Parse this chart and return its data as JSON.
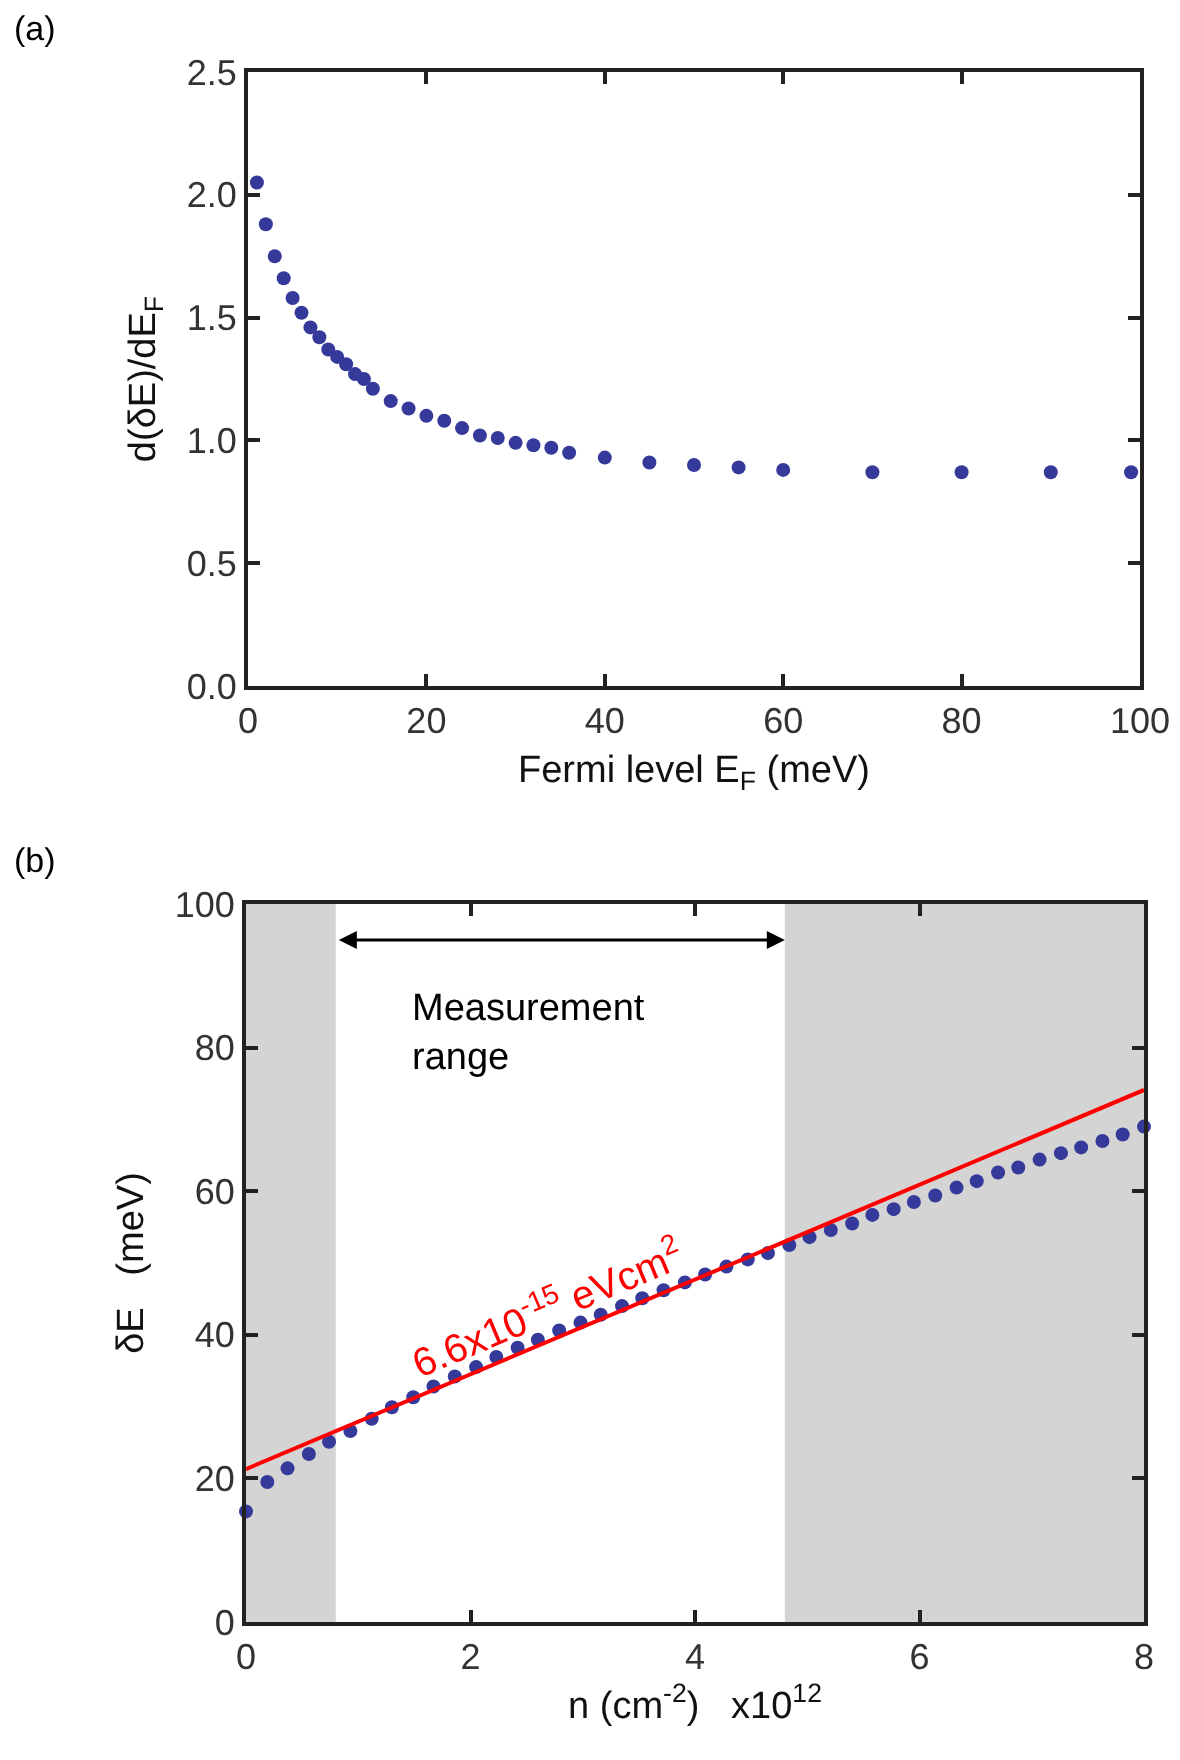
{
  "chart_data": [
    {
      "type": "scatter",
      "xlabel": "Fermi level E$_{F}$ (meV)",
      "ylabel": "d(δE)/dE$_{F}$",
      "marker": "circle",
      "annotations": [
        "(a)"
      ],
      "xlim": [
        0,
        100
      ],
      "xticks": [
        0,
        20,
        40,
        60,
        80,
        100
      ],
      "ylim": [
        0,
        2.5
      ],
      "yticks": [
        {
          "value": 0,
          "label": "0.0"
        },
        {
          "value": 0.5,
          "label": "0.5"
        },
        {
          "value": 1,
          "label": "1.0"
        },
        {
          "value": 1.5,
          "label": "1.5"
        },
        {
          "value": 2,
          "label": "2.0"
        },
        {
          "value": 2.5,
          "label": "2.5"
        }
      ],
      "series": [
        {
          "color": "#35399a",
          "x": [
            1,
            2,
            3,
            4,
            5,
            6,
            7,
            8,
            9,
            10,
            11,
            12,
            13,
            14,
            16,
            18,
            20,
            22,
            24,
            26,
            28,
            30,
            32,
            34,
            36,
            40,
            45,
            50,
            55,
            60,
            70,
            80,
            90,
            99
          ],
          "values": [
            2.05,
            1.88,
            1.75,
            1.66,
            1.58,
            1.52,
            1.46,
            1.42,
            1.37,
            1.34,
            1.31,
            1.27,
            1.25,
            1.21,
            1.16,
            1.13,
            1.1,
            1.08,
            1.05,
            1.02,
            1.01,
            0.99,
            0.98,
            0.97,
            0.95,
            0.93,
            0.91,
            0.9,
            0.89,
            0.88,
            0.87,
            0.87,
            0.87,
            0.87
          ]
        }
      ]
    },
    {
      "type": "scatter",
      "xlabel": "n (cm$^{-2}$)   x10$^{12}$",
      "ylabel": "δE   (meV)",
      "annotations": [
        "(b)",
        "Measurement\nrange",
        "6.6x10$^{-15}$ eVcm$^{2}$"
      ],
      "xlim": [
        0,
        8
      ],
      "xticks": [
        0,
        2,
        4,
        6,
        8
      ],
      "ylim": [
        0,
        100
      ],
      "yticks": [
        0,
        20,
        40,
        60,
        80,
        100
      ],
      "bands": [
        {
          "axis": "x",
          "from": 0,
          "to": 0.8,
          "color": "#d4d4d4"
        },
        {
          "axis": "x",
          "from": 4.8,
          "to": 8,
          "color": "#d4d4d4"
        }
      ],
      "series": [
        {
          "color": "#35399a",
          "marker": "circle",
          "x": [
            0,
            0.19,
            0.37,
            0.56,
            0.74,
            0.93,
            1.12,
            1.3,
            1.49,
            1.67,
            1.86,
            2.05,
            2.23,
            2.42,
            2.6,
            2.79,
            2.98,
            3.16,
            3.35,
            3.53,
            3.72,
            3.91,
            4.09,
            4.28,
            4.47,
            4.65,
            4.84,
            5.02,
            5.21,
            5.4,
            5.58,
            5.77,
            5.95,
            6.14,
            6.33,
            6.51,
            6.7,
            6.88,
            7.07,
            7.26,
            7.44,
            7.63,
            7.81,
            8
          ],
          "values": [
            15.4,
            19.5,
            21.4,
            23.4,
            25.1,
            26.6,
            28.3,
            29.9,
            31.3,
            32.8,
            34.2,
            35.5,
            36.9,
            38.2,
            39.3,
            40.6,
            41.7,
            42.8,
            44,
            45.1,
            46.2,
            47.3,
            48.4,
            49.5,
            50.5,
            51.4,
            52.5,
            53.6,
            54.6,
            55.5,
            56.7,
            57.5,
            58.5,
            59.4,
            60.5,
            61.4,
            62.6,
            63.3,
            64.4,
            65.3,
            66.1,
            67,
            67.9,
            69
          ]
        },
        {
          "type": "line",
          "color": "#ff0000",
          "x": [
            0,
            8
          ],
          "values": [
            21.3,
            74.1
          ]
        }
      ]
    }
  ]
}
